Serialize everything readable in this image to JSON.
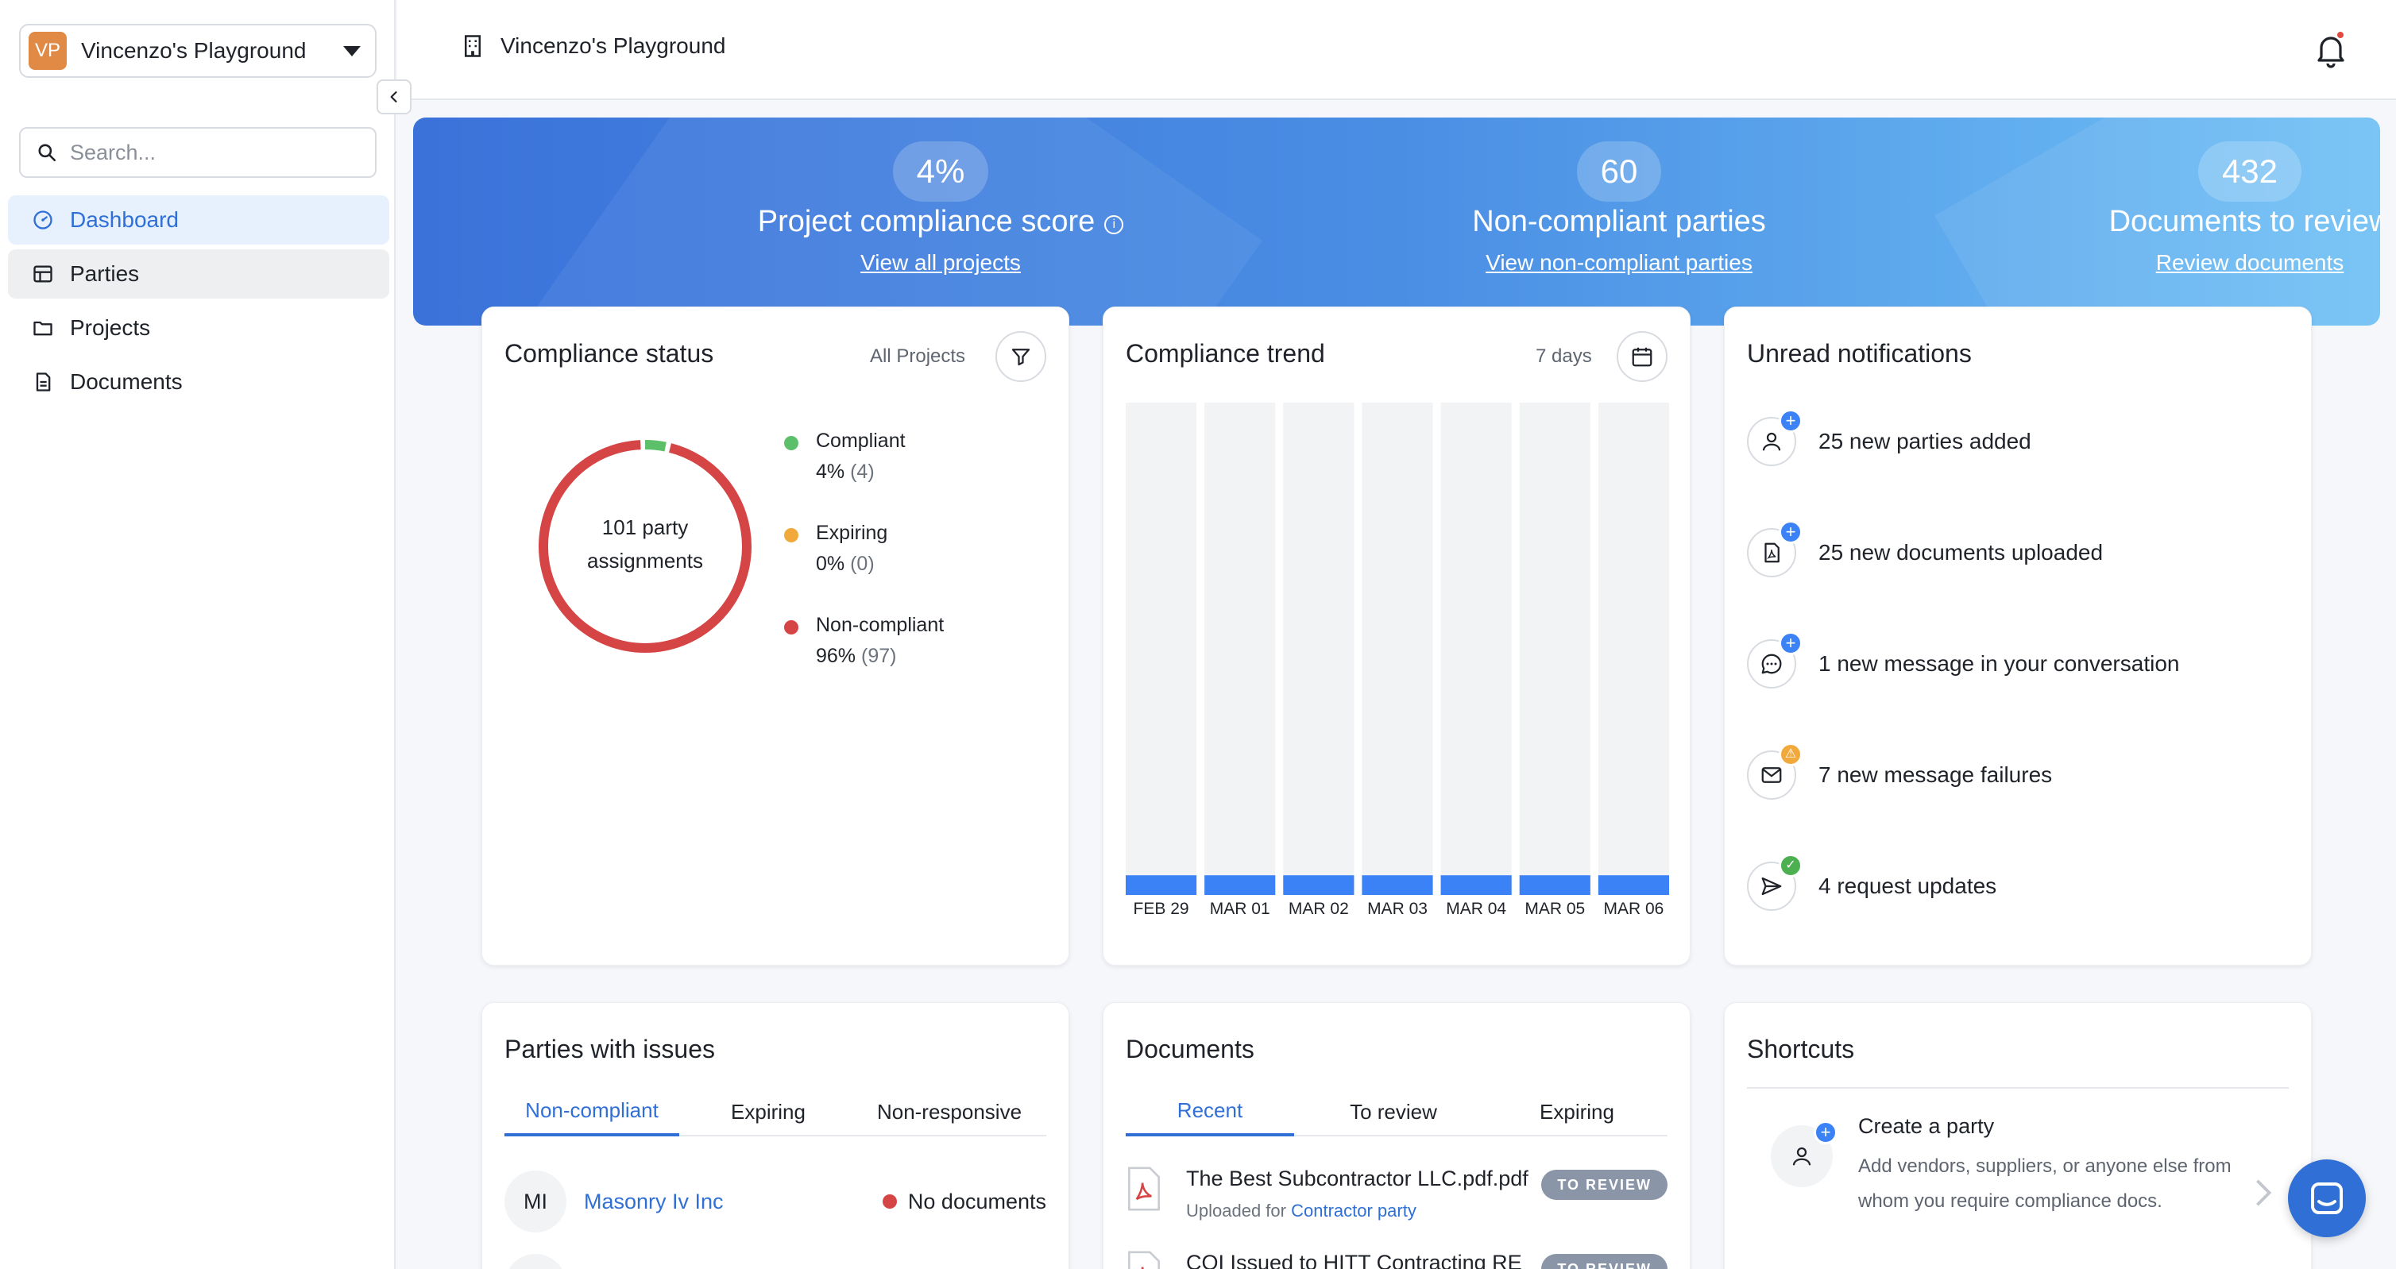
{
  "workspace": {
    "initials": "VP",
    "name": "Vincenzo's Playground"
  },
  "search": {
    "placeholder": "Search..."
  },
  "nav": {
    "items": [
      {
        "label": "Dashboard",
        "icon": "dashboard-icon"
      },
      {
        "label": "Parties",
        "icon": "parties-icon"
      },
      {
        "label": "Projects",
        "icon": "folder-icon"
      },
      {
        "label": "Documents",
        "icon": "document-icon"
      }
    ]
  },
  "header": {
    "title": "Vincenzo's Playground"
  },
  "hero": {
    "stats": [
      {
        "value": "4%",
        "label": "Project compliance score",
        "link": "View all projects"
      },
      {
        "value": "60",
        "label": "Non-compliant parties",
        "link": "View non-compliant parties"
      },
      {
        "value": "432",
        "label": "Documents to review",
        "link": "Review documents"
      }
    ]
  },
  "compliance_status": {
    "title": "Compliance status",
    "filter_label": "All Projects",
    "center_line1": "101 party",
    "center_line2": "assignments",
    "legend": [
      {
        "name": "Compliant",
        "percent": "4%",
        "count": "(4)",
        "value": 4,
        "color": "#5cc06b"
      },
      {
        "name": "Expiring",
        "percent": "0%",
        "count": "(0)",
        "value": 0,
        "color": "#f2a93b"
      },
      {
        "name": "Non-compliant",
        "percent": "96%",
        "count": "(97)",
        "value": 97,
        "color": "#d64545"
      }
    ]
  },
  "compliance_trend": {
    "title": "Compliance trend",
    "range_label": "7 days"
  },
  "chart_data": {
    "type": "bar",
    "categories": [
      "FEB 29",
      "MAR 01",
      "MAR 02",
      "MAR 03",
      "MAR 04",
      "MAR 05",
      "MAR 06"
    ],
    "values": [
      4,
      4,
      4,
      4,
      4,
      4,
      4
    ],
    "ylim": [
      0,
      100
    ],
    "bar_color": "#3b82f6",
    "track_color": "#f2f3f5"
  },
  "notifications": {
    "title": "Unread notifications",
    "items": [
      {
        "text": "25 new parties added",
        "icon": "user-icon",
        "badge": "+",
        "badge_color": "#3b82f6"
      },
      {
        "text": "25 new documents uploaded",
        "icon": "pdf-file-icon",
        "badge": "+",
        "badge_color": "#3b82f6"
      },
      {
        "text": "1 new message in your conversation",
        "icon": "chat-bubble-icon",
        "badge": "+",
        "badge_color": "#3b82f6"
      },
      {
        "text": "7 new message failures",
        "icon": "envelope-icon",
        "badge": "⚠",
        "badge_color": "#f2a93b"
      },
      {
        "text": "4 request updates",
        "icon": "send-icon",
        "badge": "✓",
        "badge_color": "#4caf50"
      }
    ]
  },
  "parties_issues": {
    "title": "Parties with issues",
    "tabs": [
      "Non-compliant",
      "Expiring",
      "Non-responsive"
    ],
    "rows": [
      {
        "initials": "MI",
        "name": "Masonry Iv Inc",
        "status": "No documents"
      }
    ]
  },
  "documents": {
    "title": "Documents",
    "tabs": [
      "Recent",
      "To review",
      "Expiring"
    ],
    "rows": [
      {
        "name": "The Best Subcontractor LLC.pdf.pdf",
        "sub_prefix": "Uploaded for",
        "sub_party": "Contractor party",
        "badge": "TO REVIEW"
      },
      {
        "name": "COI Issued to HITT Contracting RE",
        "badge": "TO REVIEW"
      }
    ]
  },
  "shortcuts": {
    "title": "Shortcuts",
    "items": [
      {
        "title": "Create a party",
        "desc": "Add vendors, suppliers, or anyone else from whom you require compliance docs."
      }
    ]
  }
}
